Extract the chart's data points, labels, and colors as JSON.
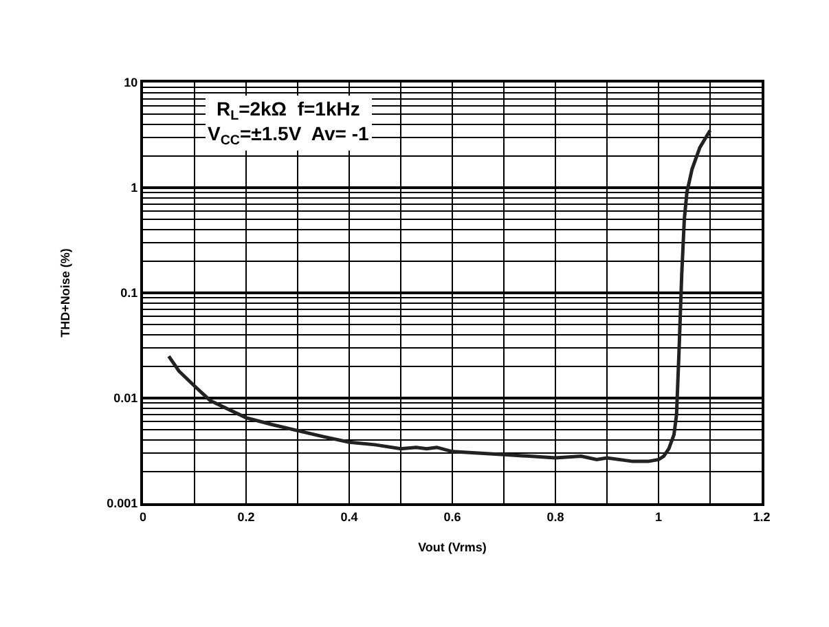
{
  "chart_data": {
    "type": "line",
    "xlabel": "Vout (Vrms)",
    "ylabel": "THD+Noise (%)",
    "annotations": [
      "R$_{L}$=2kΩ  f=1kHz\nV$_{CC}$=±1.5V  Av= -1"
    ],
    "x": [
      0.05,
      0.07,
      0.1,
      0.13,
      0.15,
      0.2,
      0.25,
      0.3,
      0.35,
      0.4,
      0.45,
      0.5,
      0.53,
      0.55,
      0.57,
      0.6,
      0.65,
      0.7,
      0.75,
      0.8,
      0.85,
      0.88,
      0.9,
      0.95,
      0.98,
      1.0,
      1.01,
      1.02,
      1.03,
      1.035,
      1.04,
      1.045,
      1.05,
      1.055,
      1.065,
      1.08,
      1.1
    ],
    "series": [
      {
        "color": "#222222",
        "values": [
          0.025,
          0.018,
          0.013,
          0.0095,
          0.0085,
          0.0065,
          0.0056,
          0.0049,
          0.0043,
          0.0038,
          0.0036,
          0.0033,
          0.0034,
          0.0033,
          0.0034,
          0.0031,
          0.003,
          0.0029,
          0.0028,
          0.0027,
          0.0028,
          0.0026,
          0.0027,
          0.0025,
          0.0025,
          0.0026,
          0.0028,
          0.0033,
          0.0045,
          0.007,
          0.03,
          0.15,
          0.5,
          0.9,
          1.5,
          2.4,
          3.5
        ]
      }
    ],
    "xlim": [
      0,
      1.2
    ],
    "ylim": [
      0.001,
      10
    ],
    "log": "y",
    "grid": true,
    "marker": "none",
    "line_style": "solid",
    "xticks": [
      0,
      {
        "value": 0.1,
        "label": null
      },
      0.2,
      {
        "value": 0.3,
        "label": null
      },
      0.4,
      {
        "value": 0.5,
        "label": null
      },
      0.6,
      {
        "value": 0.7,
        "label": null
      },
      0.8,
      {
        "value": 0.9,
        "label": null
      },
      1,
      {
        "value": 1.1,
        "label": null
      },
      1.2
    ],
    "yticks": [
      0.001,
      0.01,
      0.1,
      1,
      10
    ]
  }
}
